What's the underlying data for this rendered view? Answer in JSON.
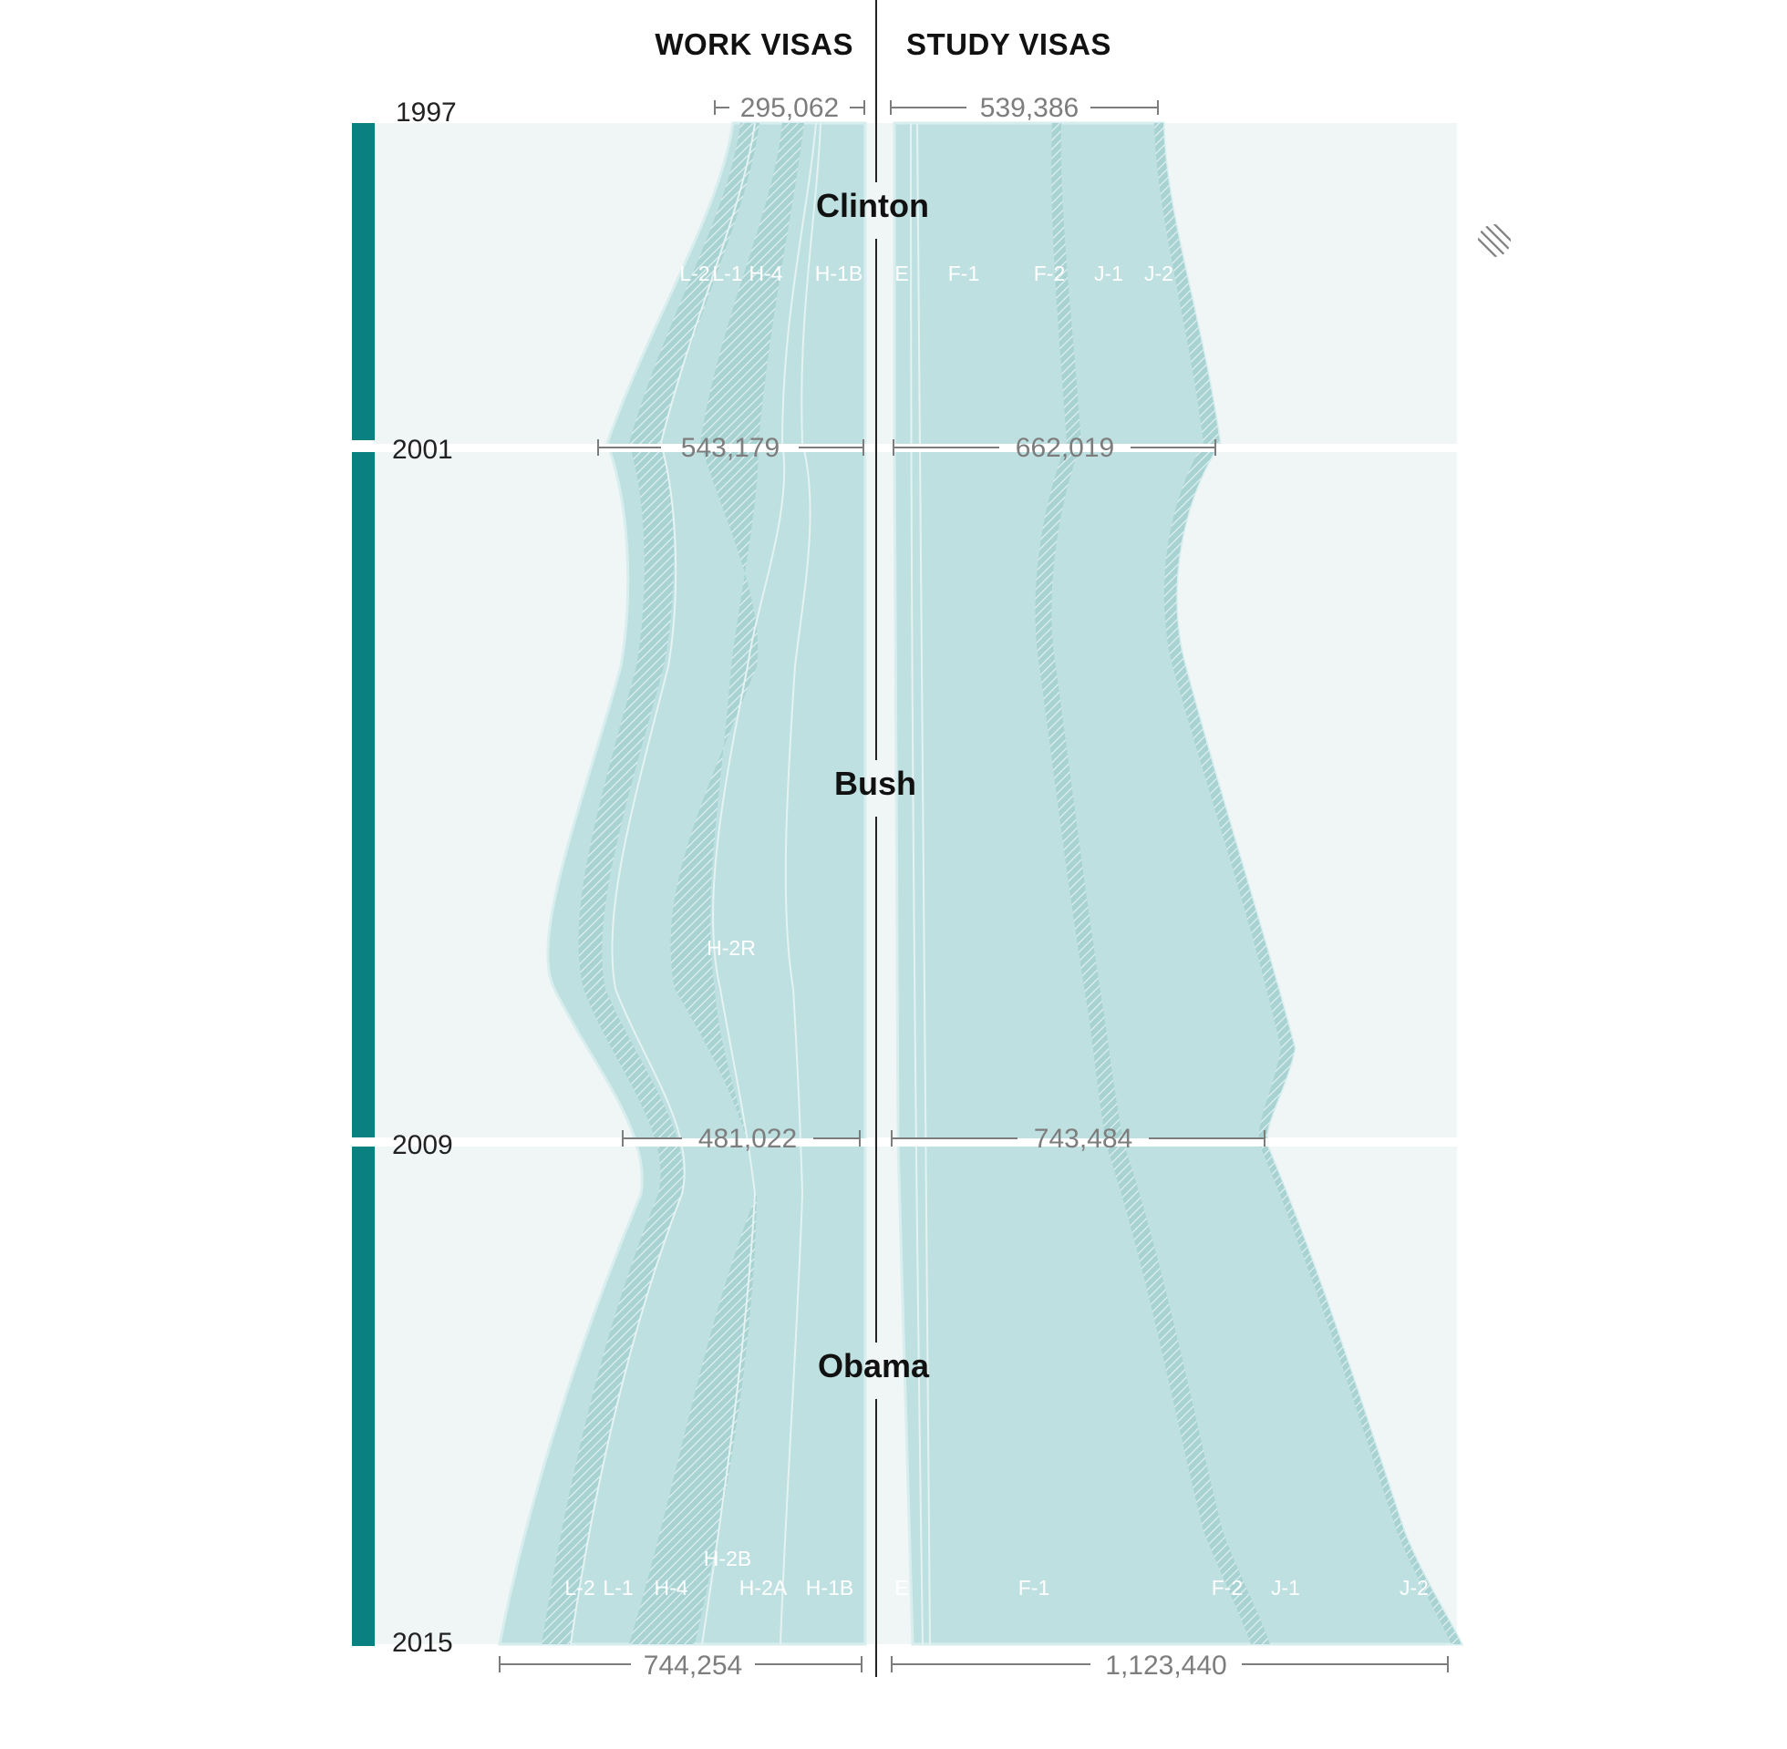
{
  "headers": {
    "work": "WORK VISAS",
    "study": "STUDY VISAS"
  },
  "colors": {
    "background_band": "#f0f6f6",
    "stream_fill": "#bfe0e0",
    "stream_edge": "#d8eeee",
    "hatch": "#8fc4c4",
    "presidency_bar": "#0a8080",
    "bracket": "#7d7d7d",
    "axis": "#222222"
  },
  "icons": {
    "legend_swatch": "hatched-circle-icon"
  },
  "chart_data": {
    "type": "area",
    "layout": "mirrored-streamgraph",
    "years": [
      1997,
      2001,
      2009,
      2015
    ],
    "presidencies": [
      {
        "name": "Clinton",
        "from": 1997,
        "to": 2001
      },
      {
        "name": "Bush",
        "from": 2001,
        "to": 2009
      },
      {
        "name": "Obama",
        "from": 2009,
        "to": 2015
      }
    ],
    "work_visas": {
      "totals": [
        {
          "year": 1997,
          "label": "295,062"
        },
        {
          "year": 2001,
          "label": "543,179"
        },
        {
          "year": 2009,
          "label": "481,022"
        },
        {
          "year": 2015,
          "label": "744,254"
        }
      ],
      "series_1997": [
        "L-2",
        "L-1",
        "H-4",
        "H-1B"
      ],
      "series_2015": [
        "L-2",
        "L-1",
        "H-4",
        "H-2B",
        "H-2A",
        "H-1B"
      ],
      "mid_label": "H-2R",
      "hatched_series": [
        "L-2",
        "H-4"
      ]
    },
    "study_visas": {
      "totals": [
        {
          "year": 1997,
          "label": "539,386"
        },
        {
          "year": 2001,
          "label": "662,019"
        },
        {
          "year": 2009,
          "label": "743,484"
        },
        {
          "year": 2015,
          "label": "1,123,440"
        }
      ],
      "series_1997": [
        "E",
        "F-1",
        "F-2",
        "J-1",
        "J-2"
      ],
      "series_2015": [
        "E",
        "F-1",
        "F-2",
        "J-1",
        "J-2"
      ],
      "hatched_series": [
        "F-2",
        "J-2"
      ]
    }
  }
}
